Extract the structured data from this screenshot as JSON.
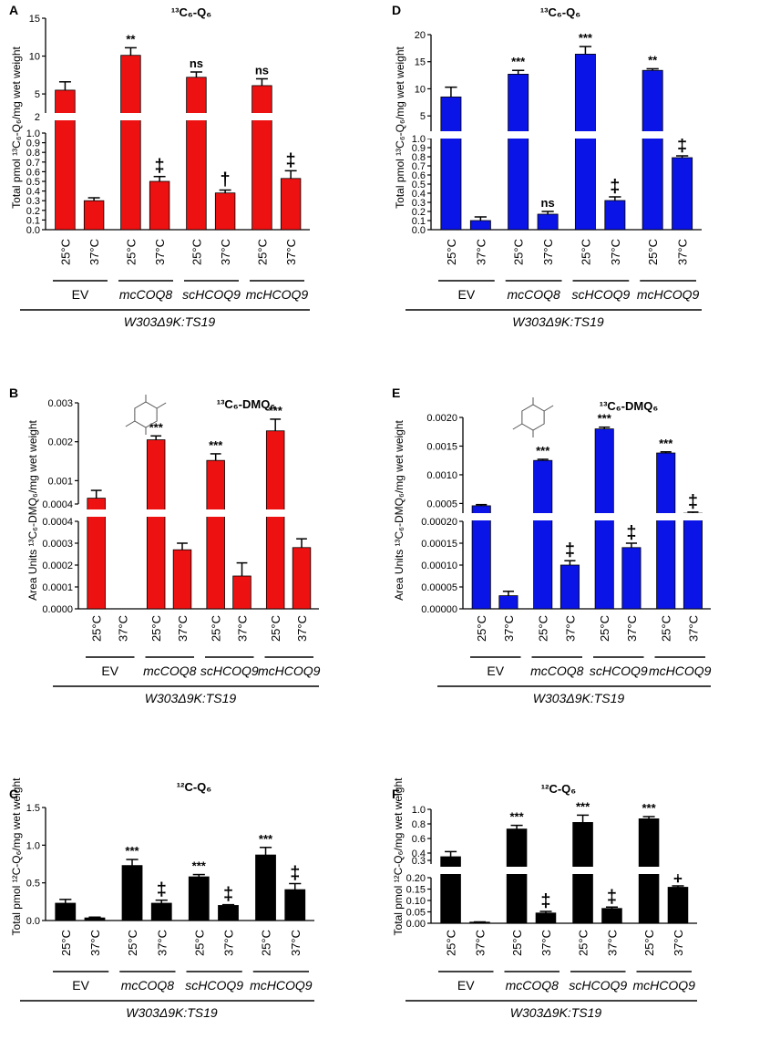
{
  "figure": {
    "strain_label": "W303Δ9K:TS19",
    "group_labels": [
      "EV",
      "mcCOQ8",
      "scHCOQ9",
      "mcHCOQ9"
    ],
    "temp_labels": [
      "25°C",
      "37°C"
    ]
  },
  "colors": {
    "red": "#ee1111",
    "blue": "#0a14e6",
    "black": "#000000"
  },
  "chart_data": [
    {
      "id": "A",
      "type": "bar",
      "panel_letter": "A",
      "title": "¹³C₆-Q₆",
      "ylabel": "Total pmol ¹³C₆-Q₆/mg wet weight",
      "categories": [
        "EV 25°C",
        "EV 37°C",
        "mcCOQ8 25°C",
        "mcCOQ8 37°C",
        "scHCOQ9 25°C",
        "scHCOQ9 37°C",
        "mcHCOQ9 25°C",
        "mcHCOQ9 37°C"
      ],
      "values": [
        5.5,
        0.3,
        10.1,
        0.5,
        7.2,
        0.38,
        6.1,
        0.53
      ],
      "errors": [
        1.1,
        0.03,
        1.0,
        0.05,
        0.7,
        0.03,
        0.9,
        0.08
      ],
      "ylim_upper": [
        2,
        15
      ],
      "ylim_lower": [
        0,
        1.0
      ],
      "upper_ticks": [
        "2",
        "5",
        "10",
        "15"
      ],
      "lower_ticks": [
        "0.0",
        "0.1",
        "0.2",
        "0.3",
        "0.4",
        "0.5",
        "0.6",
        "0.7",
        "0.8",
        "0.9",
        "1.0"
      ],
      "annotations": [
        "",
        "",
        "**",
        "‡",
        "ns",
        "†",
        "ns",
        "‡"
      ],
      "color": "#ee1111"
    },
    {
      "id": "D",
      "type": "bar",
      "panel_letter": "D",
      "title": "¹³C₆-Q₆",
      "ylabel": "Total pmol ¹³C₆-Q₆/mg wet weight",
      "categories": [
        "EV 25°C",
        "EV 37°C",
        "mcCOQ8 25°C",
        "mcCOQ8 37°C",
        "scHCOQ9 25°C",
        "scHCOQ9 37°C",
        "mcHCOQ9 25°C",
        "mcHCOQ9 37°C"
      ],
      "values": [
        8.5,
        0.1,
        12.7,
        0.17,
        16.4,
        0.32,
        13.4,
        0.79
      ],
      "errors": [
        1.8,
        0.04,
        0.7,
        0.03,
        1.4,
        0.04,
        0.3,
        0.02
      ],
      "ylim_upper": [
        2,
        20
      ],
      "ylim_lower": [
        0,
        1.0
      ],
      "upper_ticks": [
        "5",
        "10",
        "15",
        "20"
      ],
      "lower_ticks": [
        "0.0",
        "0.1",
        "0.2",
        "0.3",
        "0.4",
        "0.5",
        "0.6",
        "0.7",
        "0.8",
        "0.9",
        "1.0"
      ],
      "annotations": [
        "",
        "",
        "***",
        "ns",
        "***",
        "‡",
        "**",
        "‡"
      ],
      "color": "#0a14e6"
    },
    {
      "id": "B",
      "type": "bar",
      "panel_letter": "B",
      "title": "¹³C₆-DMQ₆",
      "ylabel": "Area Units ¹³C₆-DMQ₆/mg wet weight",
      "categories": [
        "EV 25°C",
        "EV 37°C",
        "mcCOQ8 25°C",
        "mcCOQ8 37°C",
        "scHCOQ9 25°C",
        "scHCOQ9 37°C",
        "mcHCOQ9 25°C",
        "mcHCOQ9 37°C"
      ],
      "values": [
        0.00055,
        0,
        0.00205,
        0.00027,
        0.00152,
        0.00015,
        0.00228,
        0.00028
      ],
      "errors": [
        0.0002,
        0,
        0.0001,
        3e-05,
        0.00017,
        6e-05,
        0.0003,
        4e-05
      ],
      "ylim_upper": [
        0.0004,
        0.003
      ],
      "ylim_lower": [
        0,
        0.0004
      ],
      "upper_ticks": [
        "0.0004",
        "0.001",
        "0.002",
        "0.003"
      ],
      "lower_ticks": [
        "0.0000",
        "0.0001",
        "0.0002",
        "0.0003",
        "0.0004"
      ],
      "annotations": [
        "",
        "",
        "***",
        "",
        "***",
        "",
        "***",
        ""
      ],
      "color": "#ee1111"
    },
    {
      "id": "E",
      "type": "bar",
      "panel_letter": "E",
      "title": "¹³C₆-DMQ₆",
      "ylabel": "Area Units ¹³C₆-DMQ₆/mg wet weight",
      "categories": [
        "EV 25°C",
        "EV 37°C",
        "mcCOQ8 25°C",
        "mcCOQ8 37°C",
        "scHCOQ9 25°C",
        "scHCOQ9 37°C",
        "mcHCOQ9 25°C",
        "mcHCOQ9 37°C"
      ],
      "values": [
        0.00046,
        3e-05,
        0.00125,
        0.0001,
        0.0018,
        0.00014,
        0.00138,
        0.00033
      ],
      "errors": [
        2e-05,
        1e-05,
        2e-05,
        1e-05,
        3e-05,
        1e-05,
        2e-05,
        2e-05
      ],
      "ylim_upper": [
        0.0003,
        0.002
      ],
      "ylim_lower": [
        0,
        0.0002
      ],
      "upper_ticks": [
        "0.0005",
        "0.0010",
        "0.0015",
        "0.0020"
      ],
      "lower_ticks": [
        "0.00000",
        "0.00005",
        "0.00010",
        "0.00015",
        "0.00020"
      ],
      "annotations": [
        "",
        "",
        "***",
        "‡",
        "***",
        "‡",
        "***",
        "‡"
      ],
      "color": "#0a14e6"
    },
    {
      "id": "C",
      "type": "bar",
      "panel_letter": "C",
      "title": "¹²C-Q₆",
      "ylabel": "Total pmol ¹²C-Q₆/mg wet weight",
      "categories": [
        "EV 25°C",
        "EV 37°C",
        "mcCOQ8 25°C",
        "mcCOQ8 37°C",
        "scHCOQ9 25°C",
        "scHCOQ9 37°C",
        "mcHCOQ9 25°C",
        "mcHCOQ9 37°C"
      ],
      "values": [
        0.23,
        0.035,
        0.73,
        0.23,
        0.58,
        0.2,
        0.87,
        0.41
      ],
      "errors": [
        0.05,
        0.01,
        0.08,
        0.04,
        0.03,
        0.01,
        0.1,
        0.08
      ],
      "ylim": [
        0,
        1.5
      ],
      "ticks": [
        "0.0",
        "0.5",
        "1.0",
        "1.5"
      ],
      "annotations": [
        "",
        "",
        "***",
        "‡",
        "***",
        "‡",
        "***",
        "‡"
      ],
      "color": "#000000"
    },
    {
      "id": "F",
      "type": "bar",
      "panel_letter": "F",
      "title": "¹²C-Q₆",
      "ylabel": "Total pmol ¹²C-Q₆/mg wet weight",
      "categories": [
        "EV 25°C",
        "EV 37°C",
        "mcCOQ8 25°C",
        "mcCOQ8 37°C",
        "scHCOQ9 25°C",
        "scHCOQ9 37°C",
        "mcHCOQ9 25°C",
        "mcHCOQ9 37°C"
      ],
      "values": [
        0.35,
        0.005,
        0.73,
        0.045,
        0.82,
        0.065,
        0.87,
        0.158
      ],
      "errors": [
        0.07,
        0.001,
        0.05,
        0.007,
        0.1,
        0.006,
        0.03,
        0.006
      ],
      "ylim_upper": [
        0.25,
        1.0
      ],
      "ylim_lower": [
        0,
        0.2
      ],
      "upper_ticks": [
        "0.3",
        "0.4",
        "0.6",
        "0.8",
        "1.0"
      ],
      "lower_ticks": [
        "0.00",
        "0.05",
        "0.10",
        "0.15",
        "0.20"
      ],
      "annotations": [
        "",
        "",
        "***",
        "‡",
        "***",
        "‡",
        "***",
        "‡"
      ],
      "color": "#000000"
    }
  ]
}
